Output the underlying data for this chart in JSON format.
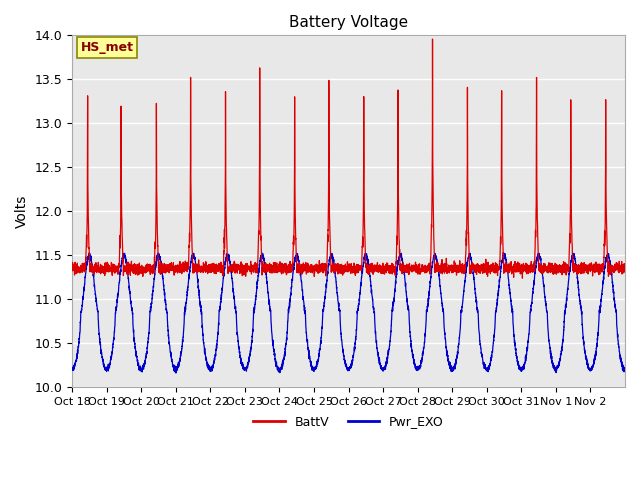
{
  "title": "Battery Voltage",
  "ylabel": "Volts",
  "ylim": [
    10.0,
    14.0
  ],
  "yticks": [
    10.0,
    10.5,
    11.0,
    11.5,
    12.0,
    12.5,
    13.0,
    13.5,
    14.0
  ],
  "x_labels": [
    "Oct 18",
    "Oct 19",
    "Oct 20",
    "Oct 21",
    "Oct 22",
    "Oct 23",
    "Oct 24",
    "Oct 25",
    "Oct 26",
    "Oct 27",
    "Oct 28",
    "Oct 29",
    "Oct 30",
    "Oct 31",
    "Nov 1",
    "Nov 2"
  ],
  "batt_color": "#dd0000",
  "pwr_color": "#0000cc",
  "background_color": "#e8e8e8",
  "legend_label_batt": "BattV",
  "legend_label_pwr": "Pwr_EXO",
  "annotation_text": "HS_met",
  "annotation_color": "#880000",
  "annotation_bg": "#ffff99",
  "n_days": 16,
  "figsize": [
    6.4,
    4.8
  ],
  "dpi": 100
}
